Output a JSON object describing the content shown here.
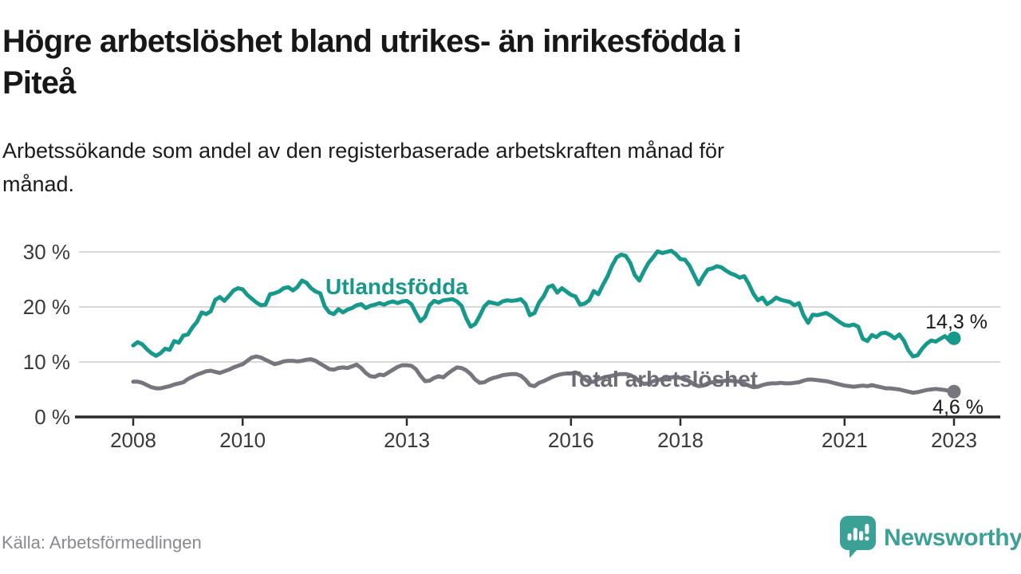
{
  "header": {
    "title": "Högre arbetslöshet bland utrikes- än inrikesfödda i Piteå",
    "title_lines": [
      "Högre arbetslöshet bland utrikes- än inrikesfödda i",
      "Piteå"
    ],
    "subtitle": "Arbetssökande som andel av den registerbaserade arbetskraften månad för månad.",
    "subtitle_lines": [
      "Arbetssökande som andel av den registerbaserade arbetskraften månad för",
      "månad."
    ]
  },
  "chart_data": {
    "type": "line",
    "title": "Högre arbetslöshet bland utrikes- än inrikesfödda i Piteå",
    "unit": "%",
    "grid": "horizontal",
    "legend_position": "inline-labels",
    "x_start_year": 2008,
    "x_interval_months": 1,
    "xlim": [
      2007.0,
      2023.9
    ],
    "ylim": [
      0,
      32.5
    ],
    "yticks": [
      {
        "value": 0,
        "label": "0 %"
      },
      {
        "value": 10,
        "label": "10 %"
      },
      {
        "value": 20,
        "label": "20 %"
      },
      {
        "value": 30,
        "label": "30 %"
      }
    ],
    "xticks": [
      {
        "value": 2008,
        "label": "2008"
      },
      {
        "value": 2010,
        "label": "2010"
      },
      {
        "value": 2013,
        "label": "2013"
      },
      {
        "value": 2016,
        "label": "2016"
      },
      {
        "value": 2018,
        "label": "2018"
      },
      {
        "value": 2021,
        "label": "2021"
      },
      {
        "value": 2023,
        "label": "2023"
      }
    ],
    "series": [
      {
        "name": "Utlandsfödda",
        "color": "#16988A",
        "end_value": 14.3,
        "end_label": "14,3 %",
        "values": [
          13.0,
          13.6,
          13.2,
          12.3,
          11.6,
          11.1,
          11.6,
          12.4,
          12.2,
          13.8,
          13.5,
          14.8,
          15.0,
          16.3,
          17.3,
          19.0,
          18.7,
          19.2,
          21.3,
          21.8,
          21.1,
          22.0,
          23.0,
          23.4,
          23.2,
          22.2,
          21.5,
          20.8,
          20.3,
          20.4,
          22.3,
          22.5,
          22.8,
          23.4,
          23.6,
          23.0,
          23.6,
          24.8,
          24.4,
          23.4,
          22.8,
          22.5,
          20.1,
          19.0,
          18.7,
          19.6,
          19.0,
          19.5,
          19.8,
          20.3,
          20.5,
          19.8,
          20.2,
          20.4,
          20.7,
          20.4,
          20.8,
          21.0,
          20.7,
          21.0,
          21.1,
          20.5,
          18.9,
          17.4,
          18.2,
          20.3,
          21.1,
          20.8,
          21.2,
          21.3,
          21.4,
          21.0,
          20.2,
          18.0,
          16.4,
          16.9,
          18.4,
          20.1,
          20.9,
          20.7,
          20.5,
          21.0,
          21.2,
          21.1,
          21.2,
          21.4,
          20.6,
          18.5,
          18.9,
          20.8,
          21.9,
          23.6,
          23.9,
          22.6,
          23.4,
          22.8,
          22.2,
          21.9,
          20.4,
          20.6,
          21.2,
          22.9,
          22.3,
          24.0,
          25.5,
          27.5,
          29.0,
          29.5,
          29.3,
          28.0,
          25.8,
          24.8,
          26.5,
          28.0,
          29.0,
          30.1,
          29.8,
          30.0,
          30.2,
          29.6,
          28.7,
          28.6,
          27.5,
          25.8,
          24.1,
          25.6,
          26.8,
          27.0,
          27.4,
          27.2,
          26.6,
          26.1,
          25.8,
          25.3,
          25.6,
          24.2,
          22.4,
          21.2,
          21.7,
          20.5,
          21.0,
          21.7,
          21.3,
          21.1,
          20.9,
          20.3,
          20.7,
          18.5,
          17.1,
          18.6,
          18.5,
          18.7,
          18.9,
          18.4,
          17.8,
          17.2,
          16.7,
          16.6,
          16.8,
          16.4,
          14.2,
          13.8,
          14.9,
          14.5,
          15.2,
          15.3,
          14.9,
          14.3,
          15.0,
          13.9,
          12.1,
          11.0,
          11.2,
          12.4,
          13.3,
          13.9,
          13.7,
          14.2,
          14.7,
          13.9,
          14.3
        ]
      },
      {
        "name": "Total arbetslöshet",
        "color": "#77767E",
        "end_value": 4.6,
        "end_label": "4,6 %",
        "values": [
          6.4,
          6.4,
          6.2,
          5.8,
          5.4,
          5.2,
          5.2,
          5.4,
          5.6,
          5.9,
          6.1,
          6.3,
          6.9,
          7.3,
          7.7,
          8.0,
          8.3,
          8.4,
          8.2,
          8.0,
          8.3,
          8.6,
          9.0,
          9.3,
          9.6,
          10.2,
          10.8,
          11.0,
          10.8,
          10.4,
          10.0,
          9.6,
          9.8,
          10.1,
          10.2,
          10.2,
          10.1,
          10.2,
          10.4,
          10.5,
          10.2,
          9.7,
          9.2,
          8.7,
          8.6,
          8.9,
          9.0,
          8.9,
          9.2,
          9.5,
          8.9,
          8.0,
          7.4,
          7.3,
          7.7,
          7.6,
          8.1,
          8.6,
          9.1,
          9.4,
          9.4,
          9.3,
          8.7,
          7.5,
          6.5,
          6.6,
          7.1,
          7.4,
          7.2,
          7.9,
          8.5,
          9.0,
          8.9,
          8.5,
          7.8,
          6.8,
          6.2,
          6.3,
          6.8,
          7.1,
          7.3,
          7.6,
          7.7,
          7.8,
          7.8,
          7.5,
          6.8,
          5.8,
          5.6,
          6.2,
          6.5,
          6.9,
          7.3,
          7.6,
          7.8,
          7.9,
          7.9,
          8.1,
          7.7,
          6.9,
          6.3,
          6.4,
          6.9,
          7.1,
          7.3,
          7.5,
          7.7,
          7.8,
          7.8,
          7.6,
          7.2,
          6.5,
          6.0,
          6.1,
          6.5,
          6.7,
          6.9,
          7.1,
          7.2,
          7.2,
          7.1,
          6.9,
          6.5,
          5.9,
          5.6,
          5.7,
          6.1,
          6.3,
          6.4,
          6.5,
          6.6,
          6.6,
          6.5,
          6.4,
          6.1,
          5.7,
          5.4,
          5.5,
          5.8,
          6.0,
          6.1,
          6.1,
          6.2,
          6.1,
          6.1,
          6.2,
          6.3,
          6.6,
          6.8,
          6.8,
          6.7,
          6.6,
          6.5,
          6.3,
          6.1,
          5.9,
          5.7,
          5.6,
          5.5,
          5.6,
          5.7,
          5.6,
          5.8,
          5.6,
          5.4,
          5.2,
          5.2,
          5.1,
          5.0,
          4.8,
          4.6,
          4.4,
          4.5,
          4.7,
          4.9,
          5.0,
          5.1,
          5.0,
          4.9,
          4.7,
          4.6
        ]
      }
    ]
  },
  "footer": {
    "source": "Källa: Arbetsförmedlingen",
    "logo_text": "Newsworthy"
  },
  "colors": {
    "teal_series": "#16988A",
    "gray_series": "#77767E",
    "gray_label": "#6D6C74",
    "logo_teal": "#3BA096",
    "grid": "#D9D9D9",
    "axis": "#2B2B2B",
    "tick_text": "#3A3A3A",
    "title_text": "#171717",
    "source_text": "#8A898E",
    "background": "#FFFFFF"
  }
}
